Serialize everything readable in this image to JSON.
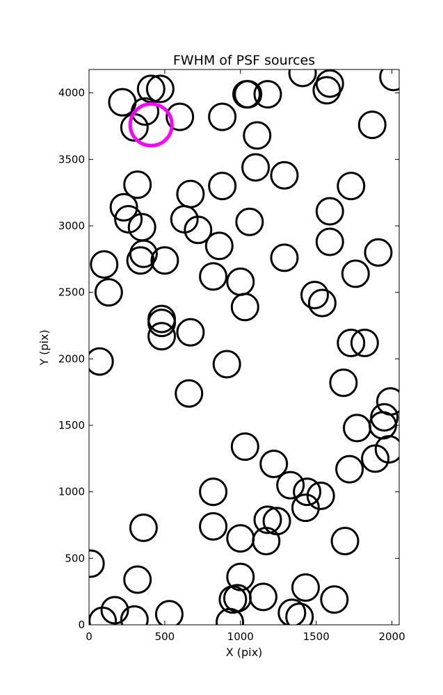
{
  "chart_data": {
    "type": "scatter",
    "title": "FWHM of PSF sources",
    "xlabel": "X (pix)",
    "ylabel": "Y (pix)",
    "xlim": [
      0,
      2048
    ],
    "ylim": [
      0,
      4176
    ],
    "x_ticks": [
      0,
      500,
      1000,
      1500,
      2000
    ],
    "y_ticks": [
      0,
      500,
      1000,
      1500,
      2000,
      2500,
      3000,
      3500,
      4000
    ],
    "grid": false,
    "marker": "open circle",
    "colors": {
      "sources": "#000000",
      "highlight": "#ff00ff"
    },
    "sources": [
      {
        "x": 220,
        "y": 3930
      },
      {
        "x": 410,
        "y": 4030
      },
      {
        "x": 470,
        "y": 4030
      },
      {
        "x": 370,
        "y": 3860
      },
      {
        "x": 300,
        "y": 3740
      },
      {
        "x": 600,
        "y": 3820
      },
      {
        "x": 880,
        "y": 3820
      },
      {
        "x": 1040,
        "y": 3990
      },
      {
        "x": 1050,
        "y": 3990
      },
      {
        "x": 1180,
        "y": 3990
      },
      {
        "x": 1410,
        "y": 4150
      },
      {
        "x": 1590,
        "y": 4070
      },
      {
        "x": 1570,
        "y": 4020
      },
      {
        "x": 2010,
        "y": 4120
      },
      {
        "x": 1870,
        "y": 3760
      },
      {
        "x": 1110,
        "y": 3680
      },
      {
        "x": 1100,
        "y": 3440
      },
      {
        "x": 1290,
        "y": 3380
      },
      {
        "x": 320,
        "y": 3310
      },
      {
        "x": 670,
        "y": 3240
      },
      {
        "x": 880,
        "y": 3300
      },
      {
        "x": 1730,
        "y": 3300
      },
      {
        "x": 1590,
        "y": 3110
      },
      {
        "x": 230,
        "y": 3140
      },
      {
        "x": 260,
        "y": 3050
      },
      {
        "x": 630,
        "y": 3050
      },
      {
        "x": 720,
        "y": 2970
      },
      {
        "x": 350,
        "y": 2990
      },
      {
        "x": 1060,
        "y": 3030
      },
      {
        "x": 1590,
        "y": 2880
      },
      {
        "x": 860,
        "y": 2850
      },
      {
        "x": 360,
        "y": 2790
      },
      {
        "x": 340,
        "y": 2740
      },
      {
        "x": 500,
        "y": 2740
      },
      {
        "x": 100,
        "y": 2710
      },
      {
        "x": 1290,
        "y": 2760
      },
      {
        "x": 1910,
        "y": 2800
      },
      {
        "x": 1760,
        "y": 2640
      },
      {
        "x": 820,
        "y": 2620
      },
      {
        "x": 1000,
        "y": 2580
      },
      {
        "x": 130,
        "y": 2500
      },
      {
        "x": 1490,
        "y": 2480
      },
      {
        "x": 1540,
        "y": 2420
      },
      {
        "x": 1030,
        "y": 2390
      },
      {
        "x": 480,
        "y": 2300
      },
      {
        "x": 480,
        "y": 2270
      },
      {
        "x": 480,
        "y": 2170
      },
      {
        "x": 670,
        "y": 2200
      },
      {
        "x": 1730,
        "y": 2120
      },
      {
        "x": 1820,
        "y": 2120
      },
      {
        "x": 70,
        "y": 1980
      },
      {
        "x": 910,
        "y": 1960
      },
      {
        "x": 1680,
        "y": 1820
      },
      {
        "x": 660,
        "y": 1740
      },
      {
        "x": 1990,
        "y": 1680
      },
      {
        "x": 1950,
        "y": 1560
      },
      {
        "x": 1940,
        "y": 1500
      },
      {
        "x": 1770,
        "y": 1480
      },
      {
        "x": 1030,
        "y": 1340
      },
      {
        "x": 1980,
        "y": 1320
      },
      {
        "x": 1890,
        "y": 1250
      },
      {
        "x": 1220,
        "y": 1210
      },
      {
        "x": 1720,
        "y": 1170
      },
      {
        "x": 1330,
        "y": 1050
      },
      {
        "x": 820,
        "y": 1000
      },
      {
        "x": 1440,
        "y": 1000
      },
      {
        "x": 1530,
        "y": 970
      },
      {
        "x": 1430,
        "y": 880
      },
      {
        "x": 1180,
        "y": 790
      },
      {
        "x": 1240,
        "y": 780
      },
      {
        "x": 820,
        "y": 740
      },
      {
        "x": 360,
        "y": 730
      },
      {
        "x": 1000,
        "y": 650
      },
      {
        "x": 1170,
        "y": 630
      },
      {
        "x": 1690,
        "y": 630
      },
      {
        "x": 10,
        "y": 460
      },
      {
        "x": 320,
        "y": 340
      },
      {
        "x": 1000,
        "y": 360
      },
      {
        "x": 1430,
        "y": 280
      },
      {
        "x": 1150,
        "y": 210
      },
      {
        "x": 1620,
        "y": 190
      },
      {
        "x": 950,
        "y": 190
      },
      {
        "x": 980,
        "y": 200
      },
      {
        "x": 170,
        "y": 110
      },
      {
        "x": 90,
        "y": 30
      },
      {
        "x": 300,
        "y": 40
      },
      {
        "x": 530,
        "y": 80
      },
      {
        "x": 1340,
        "y": 90
      },
      {
        "x": 1390,
        "y": 60
      },
      {
        "x": 930,
        "y": 20
      }
    ],
    "highlight": {
      "x": 410,
      "y": 3760
    }
  }
}
